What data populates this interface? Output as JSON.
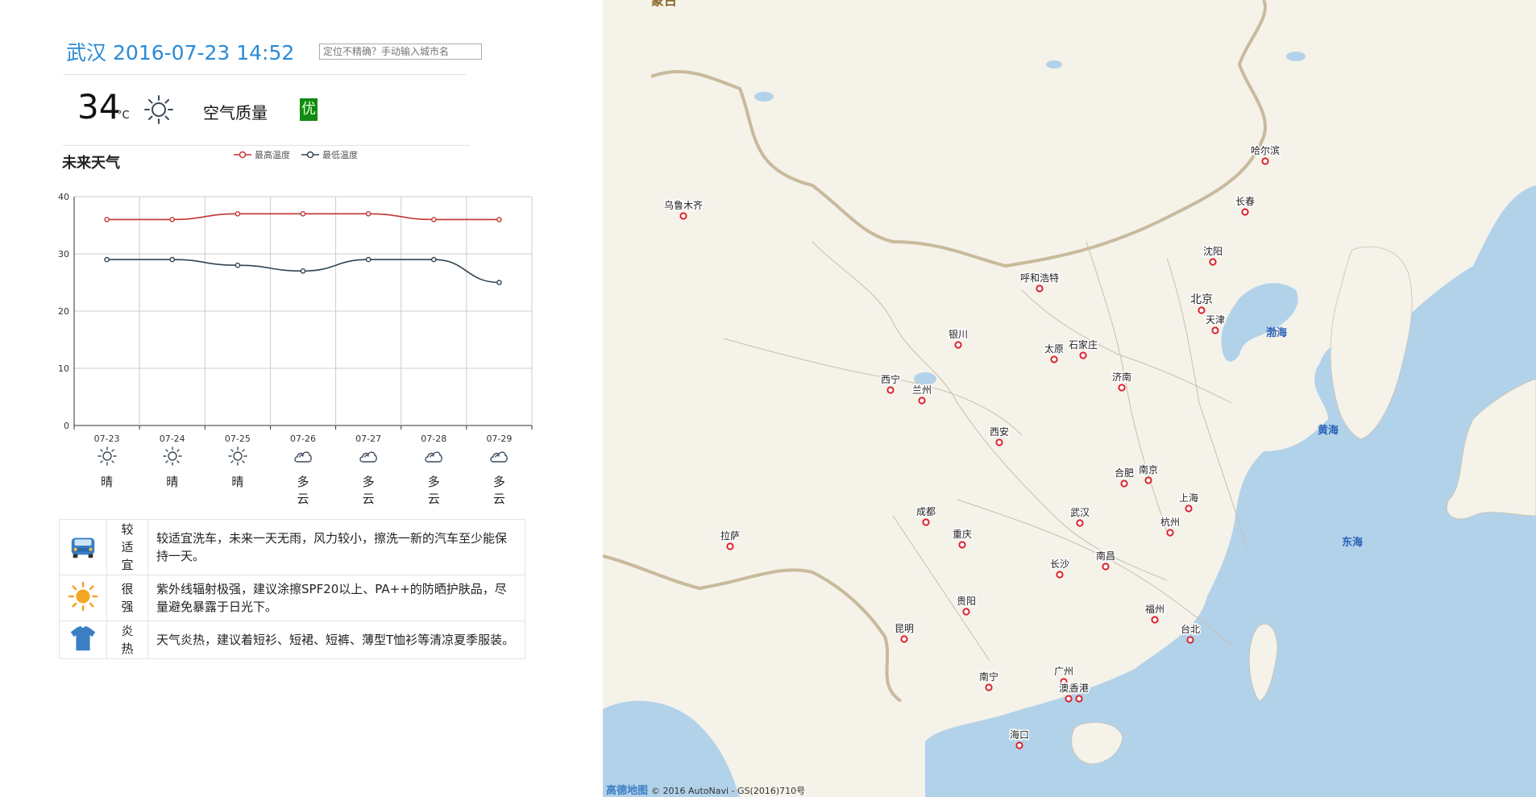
{
  "header": {
    "city": "武汉",
    "datetime": "2016-07-23 14:52",
    "search_placeholder": "定位不精确？手动输入城市名"
  },
  "current": {
    "temp": "34",
    "unit": "°C",
    "weather_icon": "sun-icon",
    "aq_label": "空气质量",
    "aq_value": "优",
    "aq_color": "#138a13"
  },
  "future": {
    "title": "未来天气",
    "legend_high": "最高温度",
    "legend_low": "最低温度"
  },
  "chart_data": {
    "type": "line",
    "categories": [
      "07-23",
      "07-24",
      "07-25",
      "07-26",
      "07-27",
      "07-28",
      "07-29"
    ],
    "series": [
      {
        "name": "最高温度",
        "values": [
          36,
          36,
          37,
          37,
          37,
          36,
          36
        ],
        "color": "#c23531"
      },
      {
        "name": "最低温度",
        "values": [
          29,
          29,
          28,
          27,
          29,
          29,
          25
        ],
        "color": "#2f4554"
      }
    ],
    "ylim": [
      0,
      40
    ],
    "yticks": [
      0,
      10,
      20,
      30,
      40
    ],
    "grid": true
  },
  "days": [
    {
      "date": "07-23",
      "icon": "sun-icon",
      "text": "晴"
    },
    {
      "date": "07-24",
      "icon": "sun-icon",
      "text": "晴"
    },
    {
      "date": "07-25",
      "icon": "sun-icon",
      "text": "晴"
    },
    {
      "date": "07-26",
      "icon": "cloud-icon",
      "text": "多云"
    },
    {
      "date": "07-27",
      "icon": "cloud-icon",
      "text": "多云"
    },
    {
      "date": "07-28",
      "icon": "cloud-icon",
      "text": "多云"
    },
    {
      "date": "07-29",
      "icon": "cloud-icon",
      "text": "多云"
    }
  ],
  "life": [
    {
      "icon": "car-icon",
      "level": "较适宜",
      "desc": "较适宜洗车，未来一天无雨，风力较小，擦洗一新的汽车至少能保持一天。"
    },
    {
      "icon": "sun-icon",
      "level": "很强",
      "desc": "紫外线辐射极强，建议涂擦SPF20以上、PA++的防晒护肤品，尽量避免暴露于日光下。"
    },
    {
      "icon": "tshirt-icon",
      "level": "炎热",
      "desc": "天气炎热，建议着短衫、短裙、短裤、薄型T恤衫等清凉夏季服装。"
    }
  ],
  "map": {
    "land_color": "#f5f2ea",
    "water_color": "#b2d2ea",
    "credit_logo": "高德地图",
    "credit_text": "© 2016 AutoNavi - GS(2016)710号",
    "top_label": "蒙古",
    "seas": [
      "渤海",
      "黄海",
      "东海"
    ],
    "cities": [
      "哈尔滨",
      "长春",
      "乌鲁木齐",
      "沈阳",
      "呼和浩特",
      "北京",
      "天津",
      "银川",
      "太原",
      "石家庄",
      "西宁",
      "兰州",
      "济南",
      "西安",
      "合肥",
      "南京",
      "上海",
      "武汉",
      "杭州",
      "拉萨",
      "成都",
      "重庆",
      "长沙",
      "南昌",
      "贵阳",
      "福州",
      "昆明",
      "台北",
      "南宁",
      "广州",
      "澳门",
      "香港",
      "海口"
    ]
  }
}
